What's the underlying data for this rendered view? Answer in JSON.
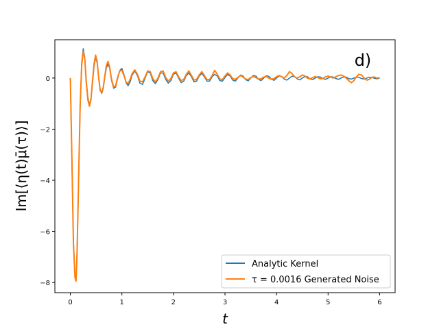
{
  "chart_data": {
    "type": "line",
    "panel_label": "d)",
    "xlabel": "t",
    "ylabel": "Im[⟨η(t)μ̄(τ)⟩]",
    "xlim": [
      -0.3,
      6.3
    ],
    "ylim": [
      -8.4,
      1.5
    ],
    "xticks": [
      0,
      1,
      2,
      3,
      4,
      5,
      6
    ],
    "yticks": [
      -8,
      -6,
      -4,
      -2,
      0
    ],
    "x_tick_labels": [
      "0",
      "1",
      "2",
      "3",
      "4",
      "5",
      "6"
    ],
    "y_tick_labels": [
      "−8",
      "−6",
      "−4",
      "−2",
      "0"
    ],
    "grid": false,
    "legend_position": "bottom-right",
    "series": [
      {
        "name": "Analytic Kernel",
        "color": "#1f77b4",
        "points": [
          [
            0.0,
            0.0
          ],
          [
            0.03,
            -3.2
          ],
          [
            0.06,
            -6.4
          ],
          [
            0.09,
            -7.7
          ],
          [
            0.11,
            -7.9
          ],
          [
            0.13,
            -6.8
          ],
          [
            0.16,
            -4.1
          ],
          [
            0.19,
            -1.2
          ],
          [
            0.22,
            0.6
          ],
          [
            0.25,
            1.15
          ],
          [
            0.28,
            0.8
          ],
          [
            0.31,
            -0.1
          ],
          [
            0.34,
            -0.75
          ],
          [
            0.37,
            -1.05
          ],
          [
            0.4,
            -0.8
          ],
          [
            0.43,
            -0.2
          ],
          [
            0.46,
            0.45
          ],
          [
            0.49,
            0.8
          ],
          [
            0.52,
            0.6
          ],
          [
            0.55,
            0.05
          ],
          [
            0.58,
            -0.45
          ],
          [
            0.61,
            -0.6
          ],
          [
            0.64,
            -0.4
          ],
          [
            0.67,
            0.05
          ],
          [
            0.7,
            0.4
          ],
          [
            0.73,
            0.55
          ],
          [
            0.76,
            0.4
          ],
          [
            0.8,
            -0.1
          ],
          [
            0.84,
            -0.4
          ],
          [
            0.88,
            -0.35
          ],
          [
            0.92,
            0.0
          ],
          [
            0.96,
            0.3
          ],
          [
            1.0,
            0.38
          ],
          [
            1.04,
            0.15
          ],
          [
            1.08,
            -0.18
          ],
          [
            1.12,
            -0.3
          ],
          [
            1.16,
            -0.15
          ],
          [
            1.2,
            0.12
          ],
          [
            1.25,
            0.28
          ],
          [
            1.3,
            0.1
          ],
          [
            1.35,
            -0.2
          ],
          [
            1.4,
            -0.25
          ],
          [
            1.45,
            0.0
          ],
          [
            1.5,
            0.25
          ],
          [
            1.55,
            0.2
          ],
          [
            1.6,
            -0.1
          ],
          [
            1.65,
            -0.22
          ],
          [
            1.7,
            -0.05
          ],
          [
            1.75,
            0.2
          ],
          [
            1.8,
            0.2
          ],
          [
            1.85,
            -0.05
          ],
          [
            1.9,
            -0.2
          ],
          [
            1.95,
            -0.1
          ],
          [
            2.0,
            0.15
          ],
          [
            2.05,
            0.2
          ],
          [
            2.1,
            0.0
          ],
          [
            2.15,
            -0.18
          ],
          [
            2.2,
            -0.12
          ],
          [
            2.25,
            0.1
          ],
          [
            2.3,
            0.2
          ],
          [
            2.35,
            0.05
          ],
          [
            2.4,
            -0.15
          ],
          [
            2.45,
            -0.12
          ],
          [
            2.5,
            0.08
          ],
          [
            2.55,
            0.18
          ],
          [
            2.6,
            0.05
          ],
          [
            2.65,
            -0.12
          ],
          [
            2.7,
            -0.12
          ],
          [
            2.75,
            0.05
          ],
          [
            2.8,
            0.15
          ],
          [
            2.85,
            0.08
          ],
          [
            2.9,
            -0.1
          ],
          [
            2.95,
            -0.12
          ],
          [
            3.0,
            0.02
          ],
          [
            3.05,
            0.14
          ],
          [
            3.1,
            0.08
          ],
          [
            3.15,
            -0.08
          ],
          [
            3.2,
            -0.12
          ],
          [
            3.25,
            0.0
          ],
          [
            3.3,
            0.12
          ],
          [
            3.35,
            0.08
          ],
          [
            3.4,
            -0.06
          ],
          [
            3.45,
            -0.11
          ],
          [
            3.5,
            0.0
          ],
          [
            3.55,
            0.1
          ],
          [
            3.6,
            0.08
          ],
          [
            3.65,
            -0.05
          ],
          [
            3.7,
            -0.1
          ],
          [
            3.75,
            0.0
          ],
          [
            3.8,
            0.09
          ],
          [
            3.85,
            0.07
          ],
          [
            3.9,
            -0.04
          ],
          [
            3.95,
            -0.09
          ],
          [
            4.0,
            0.0
          ],
          [
            4.05,
            0.08
          ],
          [
            4.1,
            0.06
          ],
          [
            4.15,
            -0.04
          ],
          [
            4.2,
            -0.08
          ],
          [
            4.25,
            0.0
          ],
          [
            4.3,
            0.07
          ],
          [
            4.35,
            0.06
          ],
          [
            4.4,
            -0.03
          ],
          [
            4.45,
            -0.07
          ],
          [
            4.5,
            0.0
          ],
          [
            4.55,
            0.06
          ],
          [
            4.6,
            0.05
          ],
          [
            4.65,
            -0.03
          ],
          [
            4.7,
            -0.06
          ],
          [
            4.75,
            0.0
          ],
          [
            4.8,
            0.05
          ],
          [
            4.85,
            0.04
          ],
          [
            4.9,
            -0.02
          ],
          [
            4.95,
            -0.05
          ],
          [
            5.0,
            0.0
          ],
          [
            5.05,
            0.05
          ],
          [
            5.1,
            0.04
          ],
          [
            5.15,
            -0.02
          ],
          [
            5.2,
            -0.05
          ],
          [
            5.25,
            0.0
          ],
          [
            5.3,
            0.04
          ],
          [
            5.35,
            0.04
          ],
          [
            5.4,
            -0.02
          ],
          [
            5.45,
            -0.04
          ],
          [
            5.5,
            0.0
          ],
          [
            5.55,
            0.04
          ],
          [
            5.6,
            0.03
          ],
          [
            5.65,
            -0.02
          ],
          [
            5.7,
            -0.04
          ],
          [
            5.75,
            0.0
          ],
          [
            5.8,
            0.03
          ],
          [
            5.85,
            0.03
          ],
          [
            5.9,
            -0.01
          ],
          [
            5.95,
            -0.03
          ],
          [
            6.0,
            0.0
          ]
        ]
      },
      {
        "name": "τ = 0.0016 Generated Noise",
        "color": "#ff7f0e",
        "points": [
          [
            0.0,
            0.0
          ],
          [
            0.03,
            -3.1
          ],
          [
            0.06,
            -6.5
          ],
          [
            0.09,
            -7.8
          ],
          [
            0.11,
            -7.95
          ],
          [
            0.13,
            -6.9
          ],
          [
            0.16,
            -4.0
          ],
          [
            0.19,
            -1.1
          ],
          [
            0.22,
            0.5
          ],
          [
            0.25,
            1.05
          ],
          [
            0.28,
            0.75
          ],
          [
            0.31,
            -0.2
          ],
          [
            0.34,
            -0.85
          ],
          [
            0.37,
            -1.1
          ],
          [
            0.4,
            -0.85
          ],
          [
            0.43,
            -0.1
          ],
          [
            0.46,
            0.55
          ],
          [
            0.49,
            0.9
          ],
          [
            0.52,
            0.65
          ],
          [
            0.55,
            0.0
          ],
          [
            0.58,
            -0.5
          ],
          [
            0.61,
            -0.55
          ],
          [
            0.64,
            -0.35
          ],
          [
            0.67,
            0.1
          ],
          [
            0.7,
            0.5
          ],
          [
            0.73,
            0.65
          ],
          [
            0.76,
            0.45
          ],
          [
            0.8,
            -0.05
          ],
          [
            0.84,
            -0.35
          ],
          [
            0.88,
            -0.3
          ],
          [
            0.92,
            0.05
          ],
          [
            0.96,
            0.28
          ],
          [
            1.0,
            0.3
          ],
          [
            1.04,
            0.1
          ],
          [
            1.08,
            -0.15
          ],
          [
            1.12,
            -0.22
          ],
          [
            1.16,
            -0.05
          ],
          [
            1.2,
            0.18
          ],
          [
            1.25,
            0.32
          ],
          [
            1.3,
            0.15
          ],
          [
            1.35,
            -0.12
          ],
          [
            1.4,
            -0.15
          ],
          [
            1.45,
            0.05
          ],
          [
            1.5,
            0.28
          ],
          [
            1.55,
            0.25
          ],
          [
            1.6,
            -0.02
          ],
          [
            1.65,
            -0.15
          ],
          [
            1.7,
            0.0
          ],
          [
            1.75,
            0.25
          ],
          [
            1.8,
            0.28
          ],
          [
            1.85,
            0.02
          ],
          [
            1.9,
            -0.12
          ],
          [
            1.95,
            -0.02
          ],
          [
            2.0,
            0.2
          ],
          [
            2.05,
            0.25
          ],
          [
            2.1,
            0.05
          ],
          [
            2.15,
            -0.1
          ],
          [
            2.2,
            -0.05
          ],
          [
            2.25,
            0.15
          ],
          [
            2.3,
            0.28
          ],
          [
            2.35,
            0.1
          ],
          [
            2.4,
            -0.08
          ],
          [
            2.45,
            -0.05
          ],
          [
            2.5,
            0.12
          ],
          [
            2.55,
            0.25
          ],
          [
            2.6,
            0.1
          ],
          [
            2.65,
            -0.06
          ],
          [
            2.7,
            -0.06
          ],
          [
            2.75,
            0.1
          ],
          [
            2.8,
            0.3
          ],
          [
            2.85,
            0.15
          ],
          [
            2.9,
            -0.04
          ],
          [
            2.95,
            -0.06
          ],
          [
            3.0,
            0.08
          ],
          [
            3.05,
            0.2
          ],
          [
            3.1,
            0.12
          ],
          [
            3.15,
            -0.02
          ],
          [
            3.2,
            -0.05
          ],
          [
            3.25,
            0.02
          ],
          [
            3.3,
            0.1
          ],
          [
            3.35,
            0.04
          ],
          [
            3.4,
            -0.04
          ],
          [
            3.45,
            -0.06
          ],
          [
            3.5,
            0.02
          ],
          [
            3.55,
            0.06
          ],
          [
            3.6,
            0.02
          ],
          [
            3.65,
            -0.04
          ],
          [
            3.7,
            -0.03
          ],
          [
            3.75,
            0.04
          ],
          [
            3.8,
            0.06
          ],
          [
            3.85,
            0.0
          ],
          [
            3.9,
            -0.05
          ],
          [
            3.95,
            -0.02
          ],
          [
            4.0,
            0.05
          ],
          [
            4.05,
            0.1
          ],
          [
            4.1,
            0.05
          ],
          [
            4.15,
            0.0
          ],
          [
            4.2,
            0.1
          ],
          [
            4.25,
            0.25
          ],
          [
            4.3,
            0.18
          ],
          [
            4.35,
            0.05
          ],
          [
            4.4,
            0.0
          ],
          [
            4.45,
            0.05
          ],
          [
            4.5,
            0.12
          ],
          [
            4.55,
            0.08
          ],
          [
            4.6,
            0.0
          ],
          [
            4.65,
            -0.04
          ],
          [
            4.7,
            0.02
          ],
          [
            4.75,
            0.06
          ],
          [
            4.8,
            0.02
          ],
          [
            4.85,
            -0.03
          ],
          [
            4.9,
            -0.02
          ],
          [
            4.95,
            0.05
          ],
          [
            5.0,
            0.08
          ],
          [
            5.05,
            0.04
          ],
          [
            5.1,
            0.0
          ],
          [
            5.15,
            0.05
          ],
          [
            5.2,
            0.1
          ],
          [
            5.25,
            0.12
          ],
          [
            5.3,
            0.08
          ],
          [
            5.35,
            0.0
          ],
          [
            5.4,
            -0.1
          ],
          [
            5.45,
            -0.18
          ],
          [
            5.5,
            -0.1
          ],
          [
            5.55,
            0.05
          ],
          [
            5.6,
            0.15
          ],
          [
            5.65,
            0.12
          ],
          [
            5.7,
            0.0
          ],
          [
            5.75,
            -0.08
          ],
          [
            5.8,
            -0.05
          ],
          [
            5.85,
            0.03
          ],
          [
            5.9,
            0.04
          ],
          [
            5.95,
            0.0
          ],
          [
            6.0,
            0.02
          ]
        ]
      }
    ]
  }
}
